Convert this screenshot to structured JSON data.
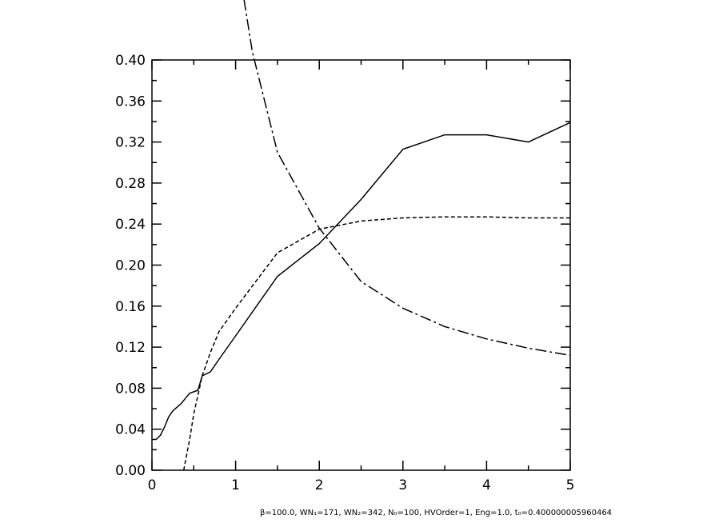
{
  "chart_data": {
    "type": "line",
    "xlim": [
      0,
      5
    ],
    "ylim": [
      0,
      0.4
    ],
    "xticks": [
      0,
      1,
      2,
      3,
      4,
      5
    ],
    "yticks": [
      {
        "value": 0,
        "label": "0.00"
      },
      {
        "value": 0.04,
        "label": "0.04"
      },
      {
        "value": 0.08,
        "label": "0.08"
      },
      {
        "value": 0.12,
        "label": "0.12"
      },
      {
        "value": 0.16,
        "label": "0.16"
      },
      {
        "value": 0.2,
        "label": "0.20"
      },
      {
        "value": 0.24,
        "label": "0.24"
      },
      {
        "value": 0.28,
        "label": "0.28"
      },
      {
        "value": 0.32,
        "label": "0.32"
      },
      {
        "value": 0.36,
        "label": "0.36"
      },
      {
        "value": 0.4,
        "label": "0.40"
      }
    ],
    "xminorticks": [
      0.5,
      1.5,
      2.5,
      3.5,
      4.5
    ],
    "yminorticks": [
      0.02,
      0.06,
      0.1,
      0.14,
      0.18,
      0.22,
      0.26,
      0.3,
      0.34,
      0.38
    ],
    "series": [
      {
        "color": "#000000",
        "dash": "solid",
        "x": [
          0,
          0.05,
          0.1,
          0.15,
          0.2,
          0.25,
          0.35,
          0.4,
          0.45,
          0.55,
          0.6,
          0.7,
          0.8,
          1.0,
          1.5,
          2.0,
          2.5,
          3.0,
          3.5,
          4.0,
          4.5,
          5.0
        ],
        "values": [
          0.03,
          0.03,
          0.034,
          0.042,
          0.052,
          0.058,
          0.065,
          0.07,
          0.075,
          0.078,
          0.092,
          0.096,
          0.108,
          0.131,
          0.189,
          0.221,
          0.264,
          0.313,
          0.327,
          0.327,
          0.32,
          0.339
        ]
      },
      {
        "color": "#000000",
        "dash": "dashed",
        "x": [
          0.38,
          0.45,
          0.5,
          0.6,
          0.7,
          0.8,
          1.0,
          1.5,
          2.0,
          2.5,
          3.0,
          3.5,
          4.0,
          4.5,
          5.0
        ],
        "values": [
          0,
          0.03,
          0.055,
          0.092,
          0.115,
          0.135,
          0.158,
          0.212,
          0.235,
          0.243,
          0.246,
          0.247,
          0.247,
          0.246,
          0.246
        ]
      },
      {
        "color": "#000000",
        "dash": "dashdot",
        "x": [
          1.1,
          1.2,
          1.5,
          2.0,
          2.5,
          3.0,
          3.5,
          4.0,
          4.5,
          5.0
        ],
        "values": [
          0.459,
          0.408,
          0.31,
          0.236,
          0.184,
          0.158,
          0.14,
          0.128,
          0.119,
          0.112
        ]
      }
    ],
    "footnote": "β=100.0, WN₁=171, WN₂=342, N₀=100, HVOrder=1, Eng=1.0, t₀=0.400000005960464"
  }
}
